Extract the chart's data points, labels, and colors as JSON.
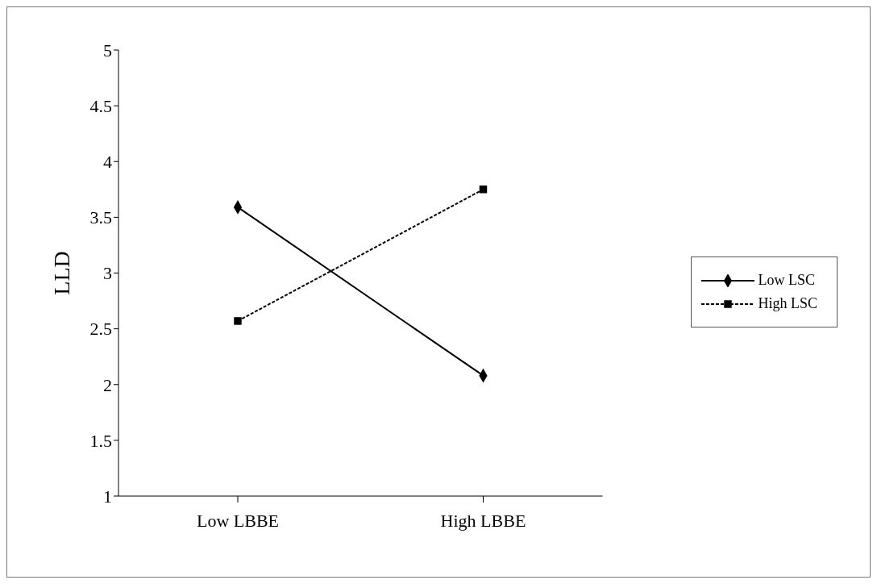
{
  "chart_data": {
    "type": "line",
    "ylabel": "LLD",
    "categories": [
      "Low LBBE",
      "High LBBE"
    ],
    "series": [
      {
        "name": "Low LSC",
        "color": "#000000",
        "values": [
          3.59,
          2.08
        ],
        "marker": "diamond",
        "line_style": "solid"
      },
      {
        "name": "High LSC",
        "color": "#000000",
        "values": [
          2.57,
          3.75
        ],
        "marker": "square",
        "line_style": "dashed"
      }
    ],
    "ylim": [
      1,
      5
    ],
    "yticks": [
      1,
      1.5,
      2,
      2.5,
      3,
      3.5,
      4,
      4.5,
      5
    ],
    "grid": false,
    "legend": "right"
  }
}
